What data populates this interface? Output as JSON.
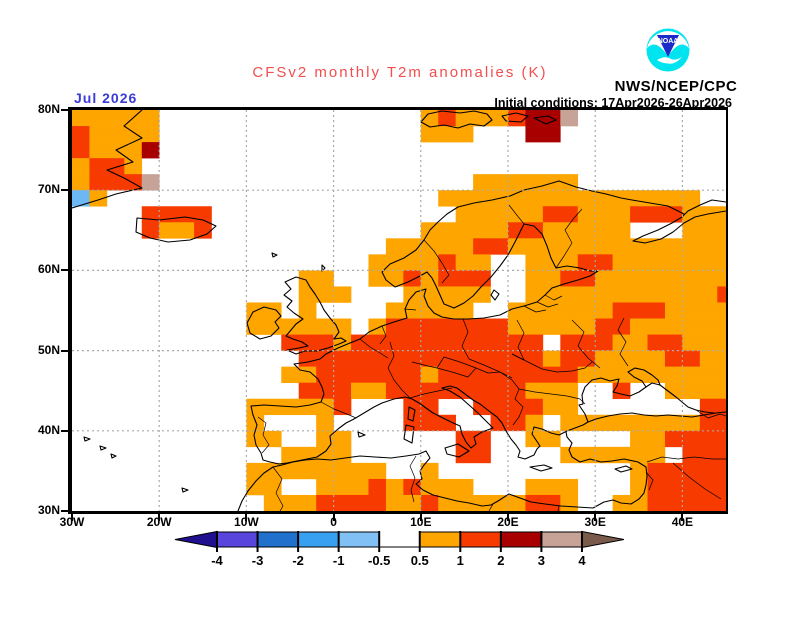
{
  "header": {
    "title": "CFSv2 monthly T2m anomalies (K)",
    "title_color": "#f24f4f",
    "agency": "NWS/NCEP/CPC",
    "forecast_month": "Jul 2026",
    "forecast_month_color": "#3a3ad6",
    "initial_conditions": "Initial conditions: 17Apr2026-26Apr2026",
    "logo_text": "NOAA",
    "logo_circle_color": "#00e4f0",
    "logo_kite_color": "#1b2cc8"
  },
  "map": {
    "lat_labels": [
      "80N",
      "70N",
      "60N",
      "50N",
      "40N",
      "30N"
    ],
    "lon_labels": [
      "30W",
      "20W",
      "10W",
      "0",
      "10E",
      "20E",
      "30E",
      "40E"
    ],
    "gridline_color": "#aaaaaa"
  },
  "chart_data": {
    "type": "heatmap",
    "title": "CFSv2 monthly T2m anomalies (K)",
    "units": "K",
    "lon_range": [
      -30,
      45
    ],
    "lat_range": [
      30,
      80
    ],
    "cell_size_deg": 2,
    "grid_cols": 38,
    "grid_rows": 25,
    "legend_bins": {
      "o": "0.5 to 1",
      "r": "1 to 2",
      "d": "2 to 3",
      "t": "3 to 4",
      "b": "-1 to -0.5",
      ".": "none / below 0.5"
    },
    "palette": {
      "o": "#ffa500",
      "r": "#f63a00",
      "d": "#a80000",
      "t": "#c6a396",
      "b": "#6cb8f4"
    },
    "rows_rle": [
      "5o15.1o1r3o1r2d1t9.",
      "1r4o15.3o3.2d10.",
      "1r3o1d33.",
      "1o2r1o34.",
      "1o3r1t18.6o9.",
      "1b1o19.15o2.",
      "4.4r14.5o2r3o3r3o",
      "4.1r2o1r12.5o2r5o3.3o",
      "18.5o2r13o",
      "17.4o1r2o2.3o2r7o",
      "13.2o2.2o1r1o3r2.2o2r8o",
      "13.3o3.5o2.11o1r",
      "10.2o1.1o4.5o2.6o3r4o",
      "10.6o1.1o7r5o2r6o",
      "12.3r1o11r1.3r2o2r3o",
      "13.14r1o2r4o2r2o",
      "12.2o6r1o8r9o",
      "13.3r2o8r3o2.1r2.4o",
      "10.5o1r3.2r2.4r2o7.2r",
      "10.1o3.1o4.3r2.2r1o1.8o2r",
      "10.2o2.2o6.2r2.2o4.2o4r",
      "12.4o6.2r4.6o1.3r",
      "10.8o2.1o11.1o5r",
      "10.2o2.3o1r1o1r3o3.3o3.1o5r",
      "11.3o4r2o1r5o2r1o2.2o5r"
    ]
  },
  "colorbar": {
    "boundary_labels": [
      "-4",
      "-3",
      "-2",
      "-1",
      "-0.5",
      "0.5",
      "1",
      "2",
      "3",
      "4"
    ],
    "segment_colors": [
      "#5846dc",
      "#2070cc",
      "#38a0f0",
      "#80c0f4",
      "#ffffff",
      "#ffa500",
      "#f63a00",
      "#a80000",
      "#c6a396"
    ],
    "left_arrow_color": "#201090",
    "right_arrow_color": "#7a5a4a"
  }
}
